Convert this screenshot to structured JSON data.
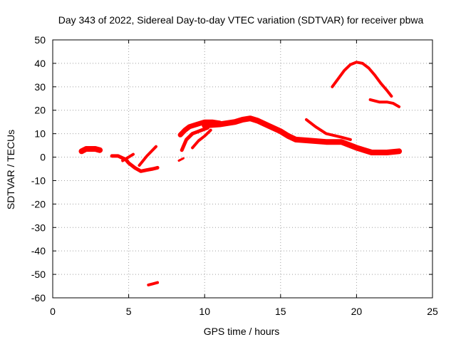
{
  "chart_data": {
    "type": "scatter",
    "title": "Day 343 of 2022, Sidereal Day-to-day VTEC variation (SDTVAR) for receiver pbwa",
    "xlabel": "GPS time / hours",
    "ylabel": "SDTVAR / TECUs",
    "xlim": [
      0,
      25
    ],
    "ylim": [
      -60,
      50
    ],
    "xticks": [
      0,
      5,
      10,
      15,
      20,
      25
    ],
    "yticks": [
      -60,
      -50,
      -40,
      -30,
      -20,
      -10,
      0,
      10,
      20,
      30,
      40,
      50
    ],
    "xtick_labels": [
      "0",
      "5",
      "10",
      "15",
      "20",
      "25"
    ],
    "ytick_labels": [
      "-60",
      "-50",
      "-40",
      "-30",
      "-20",
      "-10",
      "0",
      "10",
      "20",
      "30",
      "40",
      "50"
    ],
    "grid": true,
    "series": [
      {
        "name": "blob-2h",
        "color": "#ff0000",
        "width": 8,
        "x": [
          1.9,
          2.2,
          2.5,
          2.8,
          3.1
        ],
        "y": [
          2.5,
          3.5,
          3.5,
          3.5,
          3.0
        ]
      },
      {
        "name": "segment-4-6h",
        "color": "#ff0000",
        "width": 5,
        "x": [
          3.9,
          4.3,
          4.8,
          5.0,
          5.4,
          5.8,
          6.2,
          6.6,
          6.9
        ],
        "y": [
          0.5,
          0.5,
          -1.0,
          -2.5,
          -4.5,
          -6.0,
          -5.5,
          -5.0,
          -4.5
        ]
      },
      {
        "name": "rising-5h",
        "color": "#ff0000",
        "width": 4,
        "x": [
          4.6,
          5.0,
          5.3
        ],
        "y": [
          -1.5,
          0.0,
          1.2
        ]
      },
      {
        "name": "rising-6h",
        "color": "#ff0000",
        "width": 4,
        "x": [
          5.7,
          6.2,
          6.8
        ],
        "y": [
          -3.5,
          0.5,
          4.5
        ]
      },
      {
        "name": "outlier-6.5h",
        "color": "#ff0000",
        "width": 4,
        "x": [
          6.3,
          6.6,
          6.9
        ],
        "y": [
          -54.5,
          -54.0,
          -53.5
        ]
      },
      {
        "name": "dip-8.5h",
        "color": "#ff0000",
        "width": 3,
        "x": [
          8.3,
          8.6
        ],
        "y": [
          -1.5,
          -0.5
        ]
      },
      {
        "name": "upper-arc-8-11h",
        "color": "#ff0000",
        "width": 7,
        "x": [
          8.4,
          8.7,
          9.0,
          9.5,
          10.0,
          10.5,
          11.0
        ],
        "y": [
          9.5,
          11.5,
          13.0,
          14.0,
          15.0,
          15.0,
          14.5
        ]
      },
      {
        "name": "lower-limb-8.6h",
        "color": "#ff0000",
        "width": 5,
        "x": [
          8.5,
          8.8,
          9.2,
          9.6,
          10.2
        ],
        "y": [
          3.0,
          7.5,
          10.0,
          11.0,
          12.5
        ]
      },
      {
        "name": "rising-9.5h",
        "color": "#ff0000",
        "width": 4,
        "x": [
          9.2,
          9.6,
          10.0,
          10.4
        ],
        "y": [
          4.0,
          7.0,
          9.0,
          11.5
        ]
      },
      {
        "name": "main-band",
        "color": "#ff0000",
        "width": 8,
        "x": [
          10.0,
          11.0,
          12.0,
          12.5,
          13.0,
          13.5,
          14.0,
          14.5,
          15.0,
          15.5,
          16.0,
          17.0,
          18.0,
          19.0,
          20.0,
          21.0,
          22.0,
          22.8
        ],
        "y": [
          13.5,
          14.0,
          15.0,
          16.0,
          16.5,
          15.5,
          14.0,
          12.5,
          11.0,
          9.0,
          7.5,
          7.0,
          6.5,
          6.5,
          4.0,
          2.0,
          2.0,
          2.5
        ]
      },
      {
        "name": "branch-17h",
        "color": "#ff0000",
        "width": 4,
        "x": [
          16.7,
          17.3,
          18.0,
          19.0,
          19.6
        ],
        "y": [
          16.0,
          13.0,
          10.0,
          8.5,
          7.5
        ]
      },
      {
        "name": "arc-19-22h",
        "color": "#ff0000",
        "width": 4,
        "x": [
          18.4,
          18.8,
          19.2,
          19.6,
          20.0,
          20.4,
          20.8,
          21.2,
          21.6,
          22.0,
          22.3
        ],
        "y": [
          30.0,
          33.5,
          37.0,
          39.5,
          40.5,
          40.0,
          38.0,
          35.0,
          31.5,
          28.5,
          26.0
        ]
      },
      {
        "name": "tail-21h",
        "color": "#ff0000",
        "width": 4,
        "x": [
          20.9,
          21.5,
          22.0,
          22.4,
          22.8
        ],
        "y": [
          24.5,
          23.5,
          23.5,
          23.0,
          21.5
        ]
      }
    ]
  }
}
